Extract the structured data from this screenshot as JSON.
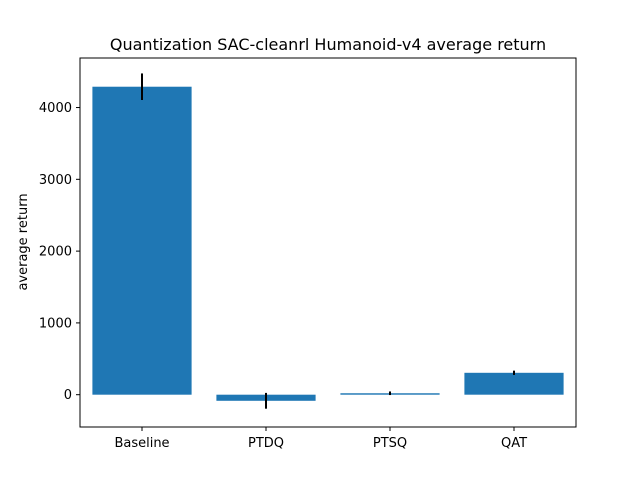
{
  "chart_data": {
    "type": "bar",
    "title": "Quantization SAC-cleanrl Humanoid-v4 average return",
    "xlabel": "",
    "ylabel": "average return",
    "categories": [
      "Baseline",
      "PTDQ",
      "PTSQ",
      "QAT"
    ],
    "values": [
      4290,
      -85,
      20,
      305
    ],
    "errors": [
      185,
      110,
      25,
      30
    ],
    "ylim": [
      -450,
      4690
    ],
    "yticks": [
      0,
      1000,
      2000,
      3000,
      4000
    ],
    "yticklabels": [
      "0",
      "1000",
      "2000",
      "3000",
      "4000"
    ],
    "grid": false,
    "bar_color": "#1f77b4",
    "error_color": "#000000"
  }
}
